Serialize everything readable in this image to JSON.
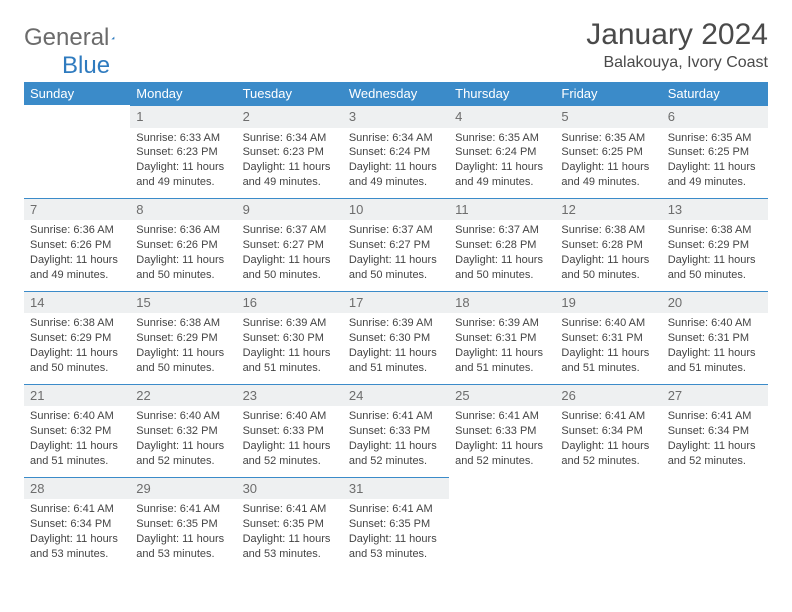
{
  "brand": {
    "part1": "General",
    "part2": "Blue"
  },
  "title": "January 2024",
  "location": "Balakouya, Ivory Coast",
  "colors": {
    "header_bg": "#3b8bc9",
    "header_text": "#ffffff",
    "daynum_bg": "#eef0f1",
    "daynum_text": "#6d6d6d",
    "rule": "#3b8bc9",
    "text": "#444444",
    "logo_gray": "#6b6b6b",
    "logo_blue": "#2f7bbf"
  },
  "weekdays": [
    "Sunday",
    "Monday",
    "Tuesday",
    "Wednesday",
    "Thursday",
    "Friday",
    "Saturday"
  ],
  "start_offset": 1,
  "days": [
    {
      "n": 1,
      "sunrise": "6:33 AM",
      "sunset": "6:23 PM",
      "daylight": "11 hours and 49 minutes."
    },
    {
      "n": 2,
      "sunrise": "6:34 AM",
      "sunset": "6:23 PM",
      "daylight": "11 hours and 49 minutes."
    },
    {
      "n": 3,
      "sunrise": "6:34 AM",
      "sunset": "6:24 PM",
      "daylight": "11 hours and 49 minutes."
    },
    {
      "n": 4,
      "sunrise": "6:35 AM",
      "sunset": "6:24 PM",
      "daylight": "11 hours and 49 minutes."
    },
    {
      "n": 5,
      "sunrise": "6:35 AM",
      "sunset": "6:25 PM",
      "daylight": "11 hours and 49 minutes."
    },
    {
      "n": 6,
      "sunrise": "6:35 AM",
      "sunset": "6:25 PM",
      "daylight": "11 hours and 49 minutes."
    },
    {
      "n": 7,
      "sunrise": "6:36 AM",
      "sunset": "6:26 PM",
      "daylight": "11 hours and 49 minutes."
    },
    {
      "n": 8,
      "sunrise": "6:36 AM",
      "sunset": "6:26 PM",
      "daylight": "11 hours and 50 minutes."
    },
    {
      "n": 9,
      "sunrise": "6:37 AM",
      "sunset": "6:27 PM",
      "daylight": "11 hours and 50 minutes."
    },
    {
      "n": 10,
      "sunrise": "6:37 AM",
      "sunset": "6:27 PM",
      "daylight": "11 hours and 50 minutes."
    },
    {
      "n": 11,
      "sunrise": "6:37 AM",
      "sunset": "6:28 PM",
      "daylight": "11 hours and 50 minutes."
    },
    {
      "n": 12,
      "sunrise": "6:38 AM",
      "sunset": "6:28 PM",
      "daylight": "11 hours and 50 minutes."
    },
    {
      "n": 13,
      "sunrise": "6:38 AM",
      "sunset": "6:29 PM",
      "daylight": "11 hours and 50 minutes."
    },
    {
      "n": 14,
      "sunrise": "6:38 AM",
      "sunset": "6:29 PM",
      "daylight": "11 hours and 50 minutes."
    },
    {
      "n": 15,
      "sunrise": "6:38 AM",
      "sunset": "6:29 PM",
      "daylight": "11 hours and 50 minutes."
    },
    {
      "n": 16,
      "sunrise": "6:39 AM",
      "sunset": "6:30 PM",
      "daylight": "11 hours and 51 minutes."
    },
    {
      "n": 17,
      "sunrise": "6:39 AM",
      "sunset": "6:30 PM",
      "daylight": "11 hours and 51 minutes."
    },
    {
      "n": 18,
      "sunrise": "6:39 AM",
      "sunset": "6:31 PM",
      "daylight": "11 hours and 51 minutes."
    },
    {
      "n": 19,
      "sunrise": "6:40 AM",
      "sunset": "6:31 PM",
      "daylight": "11 hours and 51 minutes."
    },
    {
      "n": 20,
      "sunrise": "6:40 AM",
      "sunset": "6:31 PM",
      "daylight": "11 hours and 51 minutes."
    },
    {
      "n": 21,
      "sunrise": "6:40 AM",
      "sunset": "6:32 PM",
      "daylight": "11 hours and 51 minutes."
    },
    {
      "n": 22,
      "sunrise": "6:40 AM",
      "sunset": "6:32 PM",
      "daylight": "11 hours and 52 minutes."
    },
    {
      "n": 23,
      "sunrise": "6:40 AM",
      "sunset": "6:33 PM",
      "daylight": "11 hours and 52 minutes."
    },
    {
      "n": 24,
      "sunrise": "6:41 AM",
      "sunset": "6:33 PM",
      "daylight": "11 hours and 52 minutes."
    },
    {
      "n": 25,
      "sunrise": "6:41 AM",
      "sunset": "6:33 PM",
      "daylight": "11 hours and 52 minutes."
    },
    {
      "n": 26,
      "sunrise": "6:41 AM",
      "sunset": "6:34 PM",
      "daylight": "11 hours and 52 minutes."
    },
    {
      "n": 27,
      "sunrise": "6:41 AM",
      "sunset": "6:34 PM",
      "daylight": "11 hours and 52 minutes."
    },
    {
      "n": 28,
      "sunrise": "6:41 AM",
      "sunset": "6:34 PM",
      "daylight": "11 hours and 53 minutes."
    },
    {
      "n": 29,
      "sunrise": "6:41 AM",
      "sunset": "6:35 PM",
      "daylight": "11 hours and 53 minutes."
    },
    {
      "n": 30,
      "sunrise": "6:41 AM",
      "sunset": "6:35 PM",
      "daylight": "11 hours and 53 minutes."
    },
    {
      "n": 31,
      "sunrise": "6:41 AM",
      "sunset": "6:35 PM",
      "daylight": "11 hours and 53 minutes."
    }
  ],
  "labels": {
    "sunrise": "Sunrise:",
    "sunset": "Sunset:",
    "daylight": "Daylight:"
  }
}
